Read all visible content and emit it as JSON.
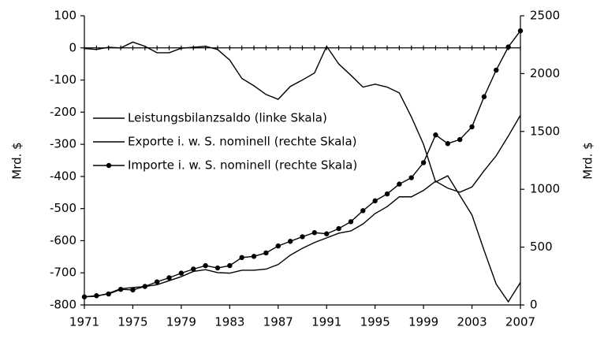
{
  "chart_data": {
    "type": "line",
    "x": [
      1971,
      1972,
      1973,
      1974,
      1975,
      1976,
      1977,
      1978,
      1979,
      1980,
      1981,
      1982,
      1983,
      1984,
      1985,
      1986,
      1987,
      1988,
      1989,
      1990,
      1991,
      1992,
      1993,
      1994,
      1995,
      1996,
      1997,
      1998,
      1999,
      2000,
      2001,
      2002,
      2003,
      2004,
      2005,
      2006,
      2007
    ],
    "xlim": [
      1971,
      2007
    ],
    "xticks": [
      1971,
      1975,
      1979,
      1983,
      1987,
      1991,
      1995,
      1999,
      2003,
      2007
    ],
    "ylabel": "Mrd. $",
    "y2label": "Mrd. $",
    "ylim": [
      -800,
      100
    ],
    "yticks": [
      -800,
      -700,
      -600,
      -500,
      -400,
      -300,
      -200,
      -100,
      0,
      100
    ],
    "y2lim": [
      0,
      2500
    ],
    "y2ticks": [
      0,
      500,
      1000,
      1500,
      2000,
      2500
    ],
    "series": [
      {
        "name": "Leistungsbilanzsaldo (linke Skala)",
        "color": "#000000",
        "axis": "y",
        "marker": false,
        "values": [
          -2,
          -5,
          2,
          0,
          18,
          5,
          -15,
          -15,
          -1,
          2,
          5,
          -5,
          -38,
          -95,
          -118,
          -145,
          -160,
          -120,
          -100,
          -78,
          5,
          -50,
          -85,
          -122,
          -113,
          -122,
          -140,
          -215,
          -300,
          -417,
          -398,
          -459,
          -520,
          -630,
          -735,
          -790,
          -730
        ]
      },
      {
        "name": "Exporte i. w. S. nominell (rechte Skala)",
        "color": "#000000",
        "axis": "y2",
        "marker": false,
        "values": [
          70,
          75,
          100,
          140,
          150,
          160,
          175,
          210,
          245,
          290,
          305,
          280,
          275,
          300,
          300,
          310,
          350,
          430,
          490,
          540,
          580,
          620,
          640,
          700,
          790,
          850,
          935,
          935,
          990,
          1070,
          1010,
          975,
          1020,
          1160,
          1290,
          1460,
          1640
        ]
      },
      {
        "name": "Importe i. w. S. nominell (rechte Skala)",
        "color": "#000000",
        "axis": "y2",
        "marker": true,
        "values": [
          70,
          80,
          95,
          135,
          130,
          160,
          200,
          235,
          275,
          310,
          340,
          320,
          340,
          410,
          420,
          450,
          510,
          550,
          590,
          625,
          615,
          660,
          720,
          815,
          900,
          960,
          1045,
          1100,
          1230,
          1470,
          1395,
          1430,
          1540,
          1800,
          2030,
          2230,
          2370
        ]
      }
    ]
  }
}
